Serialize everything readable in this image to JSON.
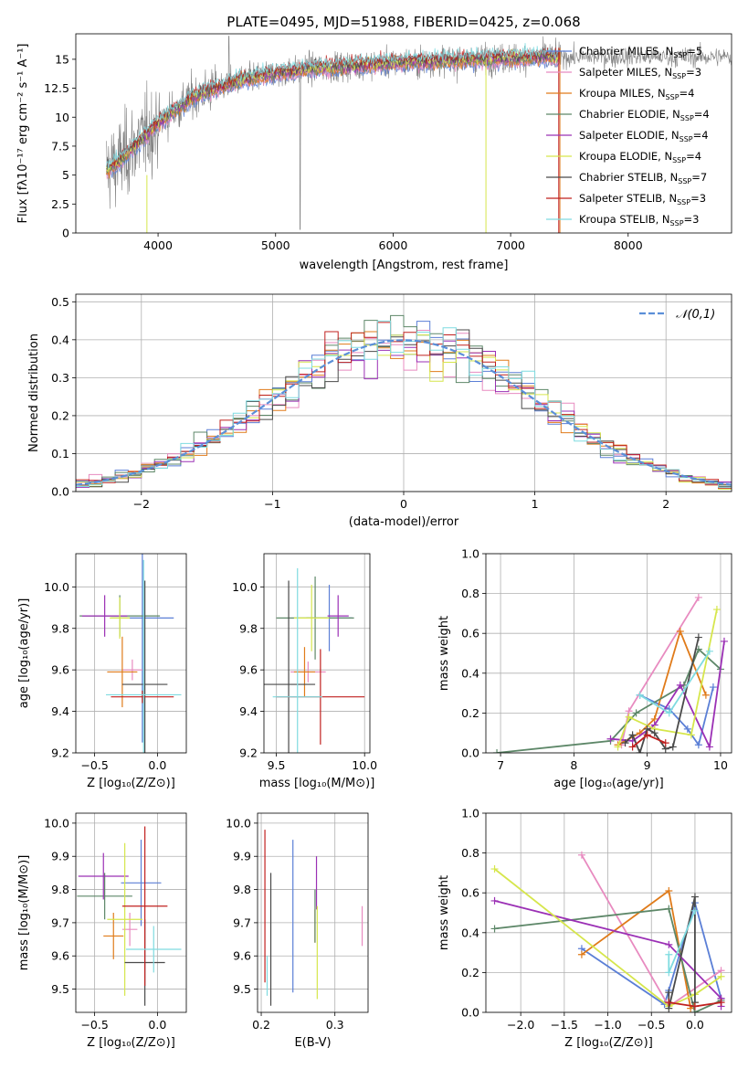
{
  "colors": {
    "chabrier_miles": "#5b7fd6",
    "salpeter_miles": "#e88bc0",
    "kroupa_miles": "#e07b1a",
    "chabrier_elodie": "#5d8768",
    "salpeter_elodie": "#9b30b5",
    "kroupa_elodie": "#d6e64c",
    "chabrier_stelib": "#4a4a4a",
    "salpeter_stelib": "#c0201f",
    "kroupa_stelib": "#7fdbe0",
    "data_gray": "#808080",
    "gauss": "#5b8fd8"
  },
  "chart_data": [
    {
      "id": "spectrum",
      "type": "line",
      "title": "PLATE=0495, MJD=51988, FIBERID=0425, z=0.068",
      "xlabel": "wavelength [Angstrom, rest frame]",
      "ylabel": "Flux [fλ10⁻¹⁷ erg cm⁻² s⁻¹ A⁻¹]",
      "xlim": [
        3300,
        8880
      ],
      "ylim": [
        0,
        17.2
      ],
      "xticks": [
        4000,
        5000,
        6000,
        7000,
        8000
      ],
      "yticks": [
        0.0,
        2.5,
        5.0,
        7.5,
        10.0,
        12.5,
        15.0
      ],
      "continuum": {
        "x": [
          3560,
          3650,
          3800,
          3900,
          4000,
          4100,
          4200,
          4300,
          4500,
          4700,
          5000,
          5300,
          5600,
          6000,
          6500,
          7000,
          7400
        ],
        "y": [
          5.5,
          6.0,
          7.5,
          8.5,
          9.5,
          10.3,
          11.0,
          11.8,
          12.5,
          13.2,
          13.8,
          14.2,
          14.4,
          14.7,
          14.9,
          15.1,
          15.2
        ]
      },
      "legend": [
        {
          "name": "Chabrier MILES",
          "nssp": "5"
        },
        {
          "name": "Salpeter MILES",
          "nssp": "3"
        },
        {
          "name": "Kroupa MILES",
          "nssp": "4"
        },
        {
          "name": "Chabrier ELODIE",
          "nssp": "4"
        },
        {
          "name": "Salpeter ELODIE",
          "nssp": "4"
        },
        {
          "name": "Kroupa ELODIE",
          "nssp": "4"
        },
        {
          "name": "Chabrier STELIB",
          "nssp": "7"
        },
        {
          "name": "Salpeter STELIB",
          "nssp": "3"
        },
        {
          "name": "Kroupa STELIB",
          "nssp": "3"
        }
      ]
    },
    {
      "id": "residuals",
      "type": "step",
      "xlabel": "(data-model)/error",
      "ylabel": "Normed distribution",
      "xlim": [
        -2.5,
        2.5
      ],
      "ylim": [
        0,
        0.52
      ],
      "xticks": [
        -2,
        -1,
        0,
        1,
        2
      ],
      "yticks": [
        0.0,
        0.1,
        0.2,
        0.3,
        0.4,
        0.5
      ],
      "legend": "𝒩(0,1)",
      "bin_width": 0.1,
      "series_count": 9
    },
    {
      "id": "age_vs_Z",
      "type": "errorbar",
      "xlabel": "Z [log₁₀(Z/Z⊙)]",
      "ylabel": "age  [log₁₀(age/yr)]",
      "xlim": [
        -0.65,
        0.23
      ],
      "ylim": [
        9.2,
        10.16
      ],
      "xticks": [
        -0.5,
        0.0
      ],
      "yticks": [
        9.2,
        9.4,
        9.6,
        9.8,
        10.0
      ],
      "points": [
        {
          "x": -0.12,
          "y": 9.85,
          "xerr": 0.25,
          "yerr": 0.6,
          "c": "chabrier_miles"
        },
        {
          "x": -0.2,
          "y": 9.6,
          "xerr": 0.08,
          "yerr": 0.05,
          "c": "salpeter_miles"
        },
        {
          "x": -0.28,
          "y": 9.59,
          "xerr": 0.12,
          "yerr": 0.17,
          "c": "kroupa_miles"
        },
        {
          "x": -0.3,
          "y": 9.86,
          "xerr": 0.32,
          "yerr": 0.1,
          "c": "chabrier_elodie"
        },
        {
          "x": -0.42,
          "y": 9.86,
          "xerr": 0.18,
          "yerr": 0.1,
          "c": "salpeter_elodie"
        },
        {
          "x": -0.3,
          "y": 9.85,
          "xerr": 0.08,
          "yerr": 0.1,
          "c": "kroupa_elodie"
        },
        {
          "x": -0.1,
          "y": 9.53,
          "xerr": 0.18,
          "yerr": 0.5,
          "c": "chabrier_stelib"
        },
        {
          "x": -0.12,
          "y": 9.47,
          "xerr": 0.25,
          "yerr": 0.03,
          "c": "salpeter_stelib"
        },
        {
          "x": -0.11,
          "y": 9.48,
          "xerr": 0.3,
          "yerr": 0.65,
          "c": "kroupa_stelib"
        }
      ]
    },
    {
      "id": "age_vs_mass",
      "type": "errorbar",
      "xlabel": "mass [log₁₀(M/M⊙)]",
      "ylabel": "",
      "xlim": [
        9.43,
        10.03
      ],
      "ylim": [
        9.2,
        10.16
      ],
      "xticks": [
        9.5,
        10.0
      ],
      "yticks": [
        9.2,
        9.4,
        9.6,
        9.8,
        10.0
      ],
      "points": [
        {
          "x": 9.8,
          "y": 9.85,
          "xerr": 0.13,
          "yerr": 0.16,
          "c": "chabrier_miles"
        },
        {
          "x": 9.68,
          "y": 9.59,
          "xerr": 0.1,
          "yerr": 0.05,
          "c": "salpeter_miles"
        },
        {
          "x": 9.66,
          "y": 9.59,
          "xerr": 0.06,
          "yerr": 0.12,
          "c": "kroupa_miles"
        },
        {
          "x": 9.72,
          "y": 9.85,
          "xerr": 0.22,
          "yerr": 0.2,
          "c": "chabrier_elodie"
        },
        {
          "x": 9.85,
          "y": 9.86,
          "xerr": 0.06,
          "yerr": 0.1,
          "c": "salpeter_elodie"
        },
        {
          "x": 9.7,
          "y": 9.85,
          "xerr": 0.1,
          "yerr": 0.16,
          "c": "kroupa_elodie"
        },
        {
          "x": 9.57,
          "y": 9.53,
          "xerr": 0.15,
          "yerr": 0.5,
          "c": "chabrier_stelib"
        },
        {
          "x": 9.75,
          "y": 9.47,
          "xerr": 0.25,
          "yerr": 0.23,
          "c": "salpeter_stelib"
        },
        {
          "x": 9.62,
          "y": 9.47,
          "xerr": 0.14,
          "yerr": 0.62,
          "c": "kroupa_stelib"
        }
      ]
    },
    {
      "id": "weight_vs_age",
      "type": "line",
      "xlabel": "age  [log₁₀(age/yr)]",
      "ylabel": "mass weight",
      "xlim": [
        6.8,
        10.15
      ],
      "ylim": [
        0,
        1.0
      ],
      "xticks": [
        7,
        8,
        9,
        10
      ],
      "yticks": [
        0.0,
        0.2,
        0.4,
        0.6,
        0.8,
        1.0
      ],
      "series": [
        {
          "c": "chabrier_miles",
          "x": [
            8.9,
            9.3,
            9.55,
            9.7,
            9.9
          ],
          "y": [
            0.29,
            0.22,
            0.12,
            0.04,
            0.33
          ]
        },
        {
          "c": "salpeter_miles",
          "x": [
            8.65,
            8.75,
            9.7
          ],
          "y": [
            0.04,
            0.21,
            0.78
          ]
        },
        {
          "c": "kroupa_miles",
          "x": [
            8.6,
            8.9,
            9.1,
            9.45,
            9.8
          ],
          "y": [
            0.04,
            0.1,
            0.17,
            0.61,
            0.29
          ]
        },
        {
          "c": "chabrier_elodie",
          "x": [
            6.95,
            8.5,
            8.85,
            9.5,
            9.7,
            10.0
          ],
          "y": [
            0.0,
            0.06,
            0.2,
            0.34,
            0.52,
            0.42
          ]
        },
        {
          "c": "salpeter_elodie",
          "x": [
            8.5,
            8.8,
            9.1,
            9.45,
            9.85,
            10.05
          ],
          "y": [
            0.07,
            0.06,
            0.14,
            0.34,
            0.03,
            0.56
          ]
        },
        {
          "c": "kroupa_elodie",
          "x": [
            8.6,
            8.75,
            9.1,
            9.6,
            9.95
          ],
          "y": [
            0.03,
            0.18,
            0.12,
            0.09,
            0.72
          ]
        },
        {
          "c": "chabrier_stelib",
          "x": [
            8.7,
            8.8,
            8.9,
            9.0,
            9.1,
            9.25,
            9.35,
            9.7
          ],
          "y": [
            0.05,
            0.09,
            0.0,
            0.12,
            0.1,
            0.02,
            0.03,
            0.58
          ]
        },
        {
          "c": "salpeter_stelib",
          "x": [
            8.8,
            9.0,
            9.25
          ],
          "y": [
            0.03,
            0.09,
            0.05
          ]
        },
        {
          "c": "kroupa_stelib",
          "x": [
            8.9,
            9.3,
            9.85
          ],
          "y": [
            0.29,
            0.2,
            0.51
          ]
        }
      ]
    },
    {
      "id": "mass_vs_Z",
      "type": "errorbar",
      "xlabel": "Z [log₁₀(Z/Z⊙)]",
      "ylabel": "mass [log₁₀(M/M⊙)]",
      "xlim": [
        -0.65,
        0.23
      ],
      "ylim": [
        9.43,
        10.03
      ],
      "xticks": [
        -0.5,
        0.0
      ],
      "yticks": [
        9.5,
        9.6,
        9.7,
        9.8,
        9.9,
        10.0
      ],
      "points": [
        {
          "x": -0.13,
          "y": 9.82,
          "xerr": 0.16,
          "yerr": 0.13,
          "c": "chabrier_miles"
        },
        {
          "x": -0.22,
          "y": 9.68,
          "xerr": 0.06,
          "yerr": 0.05,
          "c": "salpeter_miles"
        },
        {
          "x": -0.35,
          "y": 9.66,
          "xerr": 0.08,
          "yerr": 0.07,
          "c": "kroupa_miles"
        },
        {
          "x": -0.42,
          "y": 9.78,
          "xerr": 0.22,
          "yerr": 0.07,
          "c": "chabrier_elodie"
        },
        {
          "x": -0.43,
          "y": 9.84,
          "xerr": 0.2,
          "yerr": 0.07,
          "c": "salpeter_elodie"
        },
        {
          "x": -0.26,
          "y": 9.71,
          "xerr": 0.14,
          "yerr": 0.23,
          "c": "kroupa_elodie"
        },
        {
          "x": -0.1,
          "y": 9.58,
          "xerr": 0.16,
          "yerr": 0.13,
          "c": "chabrier_stelib"
        },
        {
          "x": -0.1,
          "y": 9.75,
          "xerr": 0.18,
          "yerr": 0.24,
          "c": "salpeter_stelib"
        },
        {
          "x": -0.03,
          "y": 9.62,
          "xerr": 0.22,
          "yerr": 0.07,
          "c": "kroupa_stelib"
        }
      ]
    },
    {
      "id": "mass_vs_ebv",
      "type": "errorbar",
      "xlabel": "E(B-V)",
      "ylabel": "",
      "xlim": [
        0.195,
        0.345
      ],
      "ylim": [
        9.43,
        10.03
      ],
      "xticks": [
        0.2,
        0.3
      ],
      "yticks": [
        9.5,
        9.6,
        9.7,
        9.8,
        9.9,
        10.0
      ],
      "points": [
        {
          "x": 0.243,
          "y": 9.72,
          "xerr": 0,
          "yerr": 0.23,
          "c": "chabrier_miles"
        },
        {
          "x": 0.337,
          "y": 9.69,
          "xerr": 0,
          "yerr": 0.06,
          "c": "salpeter_miles"
        },
        {
          "x": 0.273,
          "y": 9.69,
          "xerr": 0,
          "yerr": 0.05,
          "c": "kroupa_miles"
        },
        {
          "x": 0.273,
          "y": 9.72,
          "xerr": 0,
          "yerr": 0.08,
          "c": "chabrier_elodie"
        },
        {
          "x": 0.275,
          "y": 9.82,
          "xerr": 0,
          "yerr": 0.08,
          "c": "salpeter_elodie"
        },
        {
          "x": 0.276,
          "y": 9.61,
          "xerr": 0,
          "yerr": 0.14,
          "c": "kroupa_elodie"
        },
        {
          "x": 0.213,
          "y": 9.65,
          "xerr": 0,
          "yerr": 0.2,
          "c": "chabrier_stelib"
        },
        {
          "x": 0.205,
          "y": 9.75,
          "xerr": 0,
          "yerr": 0.23,
          "c": "salpeter_stelib"
        },
        {
          "x": 0.208,
          "y": 9.54,
          "xerr": 0,
          "yerr": 0.06,
          "c": "kroupa_stelib"
        }
      ]
    },
    {
      "id": "weight_vs_Z",
      "type": "line",
      "xlabel": "Z [log₁₀(Z/Z⊙)]",
      "ylabel": "mass weight",
      "xlim": [
        -2.4,
        0.42
      ],
      "ylim": [
        0,
        1.0
      ],
      "xticks": [
        -2.0,
        -1.5,
        -1.0,
        -0.5,
        0.0
      ],
      "yticks": [
        0.0,
        0.2,
        0.4,
        0.6,
        0.8,
        1.0
      ],
      "series": [
        {
          "c": "chabrier_miles",
          "x": [
            -1.3,
            -0.35,
            -0.3,
            0.0,
            0.3
          ],
          "y": [
            0.32,
            0.04,
            0.11,
            0.55,
            0.07
          ]
        },
        {
          "c": "salpeter_miles",
          "x": [
            -1.3,
            -0.3,
            0.3
          ],
          "y": [
            0.79,
            0.03,
            0.21
          ]
        },
        {
          "c": "kroupa_miles",
          "x": [
            -1.3,
            -0.3,
            -0.05,
            0.0
          ],
          "y": [
            0.29,
            0.61,
            0.02,
            0.05
          ]
        },
        {
          "c": "chabrier_elodie",
          "x": [
            -2.3,
            -0.3,
            -0.0,
            0.3
          ],
          "y": [
            0.42,
            0.52,
            0.0,
            0.06
          ]
        },
        {
          "c": "salpeter_elodie",
          "x": [
            -2.3,
            -0.3,
            0.3,
            0.3
          ],
          "y": [
            0.56,
            0.34,
            0.07,
            0.03
          ]
        },
        {
          "c": "kroupa_elodie",
          "x": [
            -2.3,
            -0.3,
            0.0,
            0.3
          ],
          "y": [
            0.72,
            0.03,
            0.09,
            0.18
          ]
        },
        {
          "c": "chabrier_stelib",
          "x": [
            -0.3,
            -0.3,
            0.0,
            0.0
          ],
          "y": [
            0.1,
            0.02,
            0.58,
            0.05
          ]
        },
        {
          "c": "salpeter_stelib",
          "x": [
            -0.3,
            0.0,
            0.3
          ],
          "y": [
            0.05,
            0.03,
            0.05
          ]
        },
        {
          "c": "kroupa_stelib",
          "x": [
            -0.3,
            -0.3,
            0.0
          ],
          "y": [
            0.29,
            0.2,
            0.51
          ]
        }
      ]
    }
  ]
}
